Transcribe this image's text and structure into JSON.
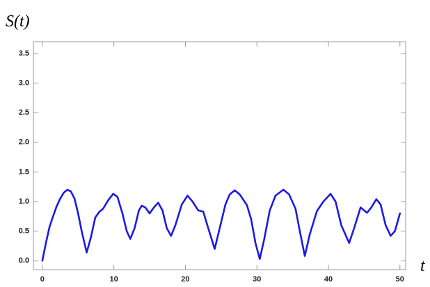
{
  "chart_data": {
    "type": "line",
    "y_label": "S(t)",
    "x_label": "t",
    "x": [
      0,
      0.5,
      1,
      1.5,
      2,
      2.5,
      3,
      3.5,
      4,
      4.5,
      5,
      5.5,
      6.2,
      6.8,
      7.4,
      8,
      8.5,
      9.2,
      9.9,
      10.5,
      11.2,
      11.8,
      12.3,
      12.9,
      13.5,
      13.9,
      14.4,
      15,
      15.6,
      16.2,
      16.8,
      17.4,
      18,
      18.6,
      19.5,
      20.3,
      21,
      21.8,
      22.5,
      23.2,
      24.1,
      24.8,
      25.6,
      26.2,
      26.9,
      27.6,
      28.6,
      29.2,
      29.8,
      30.4,
      31,
      31.8,
      32.6,
      33.7,
      34.5,
      35.4,
      36,
      36.7,
      37.4,
      38.4,
      39.3,
      40.3,
      41,
      41.8,
      42.9,
      43.6,
      44.5,
      45.4,
      46,
      46.7,
      47.3,
      48,
      48.7,
      49.3,
      50
    ],
    "series": [
      {
        "color": "#1a1ae6",
        "values": [
          0,
          0.3,
          0.57,
          0.75,
          0.92,
          1.05,
          1.15,
          1.2,
          1.17,
          1.05,
          0.8,
          0.5,
          0.14,
          0.4,
          0.73,
          0.83,
          0.88,
          1.02,
          1.13,
          1.08,
          0.8,
          0.5,
          0.37,
          0.55,
          0.85,
          0.93,
          0.9,
          0.8,
          0.9,
          0.98,
          0.85,
          0.55,
          0.42,
          0.6,
          0.95,
          1.1,
          1.0,
          0.85,
          0.83,
          0.55,
          0.2,
          0.55,
          0.95,
          1.12,
          1.19,
          1.12,
          0.94,
          0.7,
          0.3,
          0.03,
          0.35,
          0.85,
          1.1,
          1.2,
          1.12,
          0.88,
          0.5,
          0.08,
          0.45,
          0.84,
          1.0,
          1.13,
          1.0,
          0.6,
          0.3,
          0.55,
          0.9,
          0.81,
          0.9,
          1.04,
          0.95,
          0.6,
          0.42,
          0.5,
          0.8
        ]
      }
    ],
    "xlim": [
      -1.25,
      50.8
    ],
    "ylim": [
      -0.15,
      3.7
    ],
    "xticks": [
      0,
      10,
      20,
      30,
      40,
      50
    ],
    "yticks": [
      {
        "value": 0,
        "label": "0.0"
      },
      0.5,
      {
        "value": 1,
        "label": "1.0"
      },
      1.5,
      {
        "value": 2,
        "label": "2.0"
      },
      2.5,
      {
        "value": 3,
        "label": "3.0"
      },
      3.5
    ]
  }
}
